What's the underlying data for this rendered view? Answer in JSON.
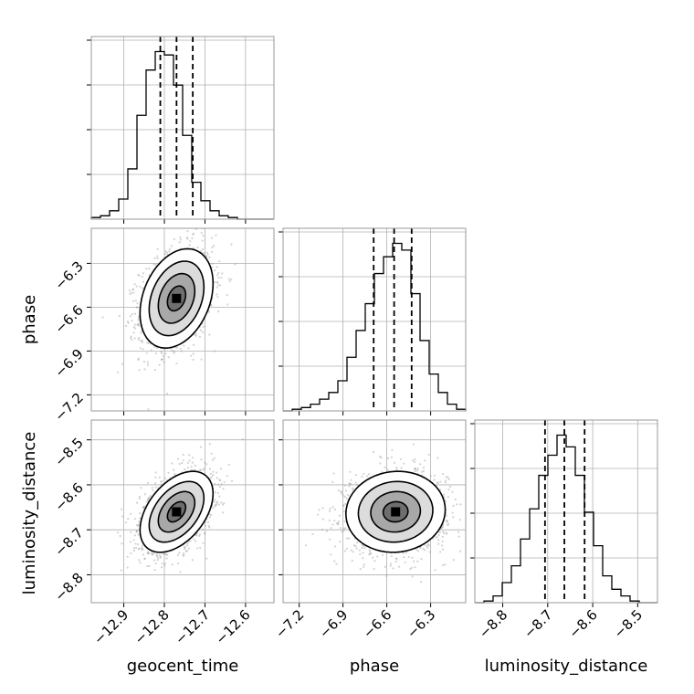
{
  "chart_data": {
    "type": "corner",
    "parameters": [
      "geocent_time",
      "phase",
      "luminosity_distance"
    ],
    "grid": true,
    "colors": {
      "line": "#000000",
      "grid": "#b0b0b0",
      "points": "#9e9e9e"
    },
    "ranges": {
      "geocent_time": [
        -12.98,
        -12.53
      ],
      "phase": [
        -7.31,
        -6.06
      ],
      "luminosity_distance": [
        -8.862,
        -8.456
      ]
    },
    "ticks": {
      "geocent_time": [
        -12.9,
        -12.8,
        -12.7,
        -12.6
      ],
      "phase": [
        -7.2,
        -6.9,
        -6.6,
        -6.3
      ],
      "luminosity_distance": [
        -8.8,
        -8.7,
        -8.6,
        -8.5
      ]
    },
    "tick_labels": {
      "geocent_time": [
        "−12.9",
        "−12.8",
        "−12.7",
        "−12.6"
      ],
      "phase": [
        "−7.2",
        "−6.9",
        "−6.6",
        "−6.3"
      ],
      "luminosity_distance": [
        "−8.8",
        "−8.7",
        "−8.6",
        "−8.5"
      ]
    },
    "quantiles": {
      "geocent_time": [
        -12.81,
        -12.77,
        -12.73
      ],
      "phase": [
        -6.69,
        -6.55,
        -6.43
      ],
      "luminosity_distance": [
        -8.706,
        -8.663,
        -8.618
      ]
    },
    "means": {
      "geocent_time": -12.77,
      "phase": -6.54,
      "luminosity_distance": -8.66
    },
    "stds": {
      "geocent_time": 0.045,
      "phase": 0.17,
      "luminosity_distance": 0.045
    },
    "correlations": [
      {
        "x": "geocent_time",
        "y": "phase",
        "rho": 0.3
      },
      {
        "x": "geocent_time",
        "y": "luminosity_distance",
        "rho": 0.45
      },
      {
        "x": "phase",
        "y": "luminosity_distance",
        "rho": 0.05
      }
    ],
    "histograms": {
      "geocent_time": {
        "edges": [
          -12.98,
          -12.9575,
          -12.935,
          -12.9125,
          -12.89,
          -12.8675,
          -12.845,
          -12.8225,
          -12.8,
          -12.7775,
          -12.755,
          -12.7325,
          -12.71,
          -12.6875,
          -12.665,
          -12.6425,
          -12.62,
          -12.5975,
          -12.575,
          -12.5525,
          -12.53
        ],
        "counts": [
          1,
          2,
          5,
          12,
          30,
          62,
          89,
          100,
          98,
          80,
          50,
          22,
          11,
          5,
          2,
          1,
          0,
          0,
          0,
          0
        ]
      },
      "phase": {
        "edges": [
          -7.31,
          -7.2475,
          -7.185,
          -7.1225,
          -7.06,
          -6.9975,
          -6.935,
          -6.8725,
          -6.81,
          -6.7475,
          -6.685,
          -6.6225,
          -6.56,
          -6.4975,
          -6.435,
          -6.3725,
          -6.31,
          -6.2475,
          -6.185,
          -6.1225,
          -6.06
        ],
        "counts": [
          0,
          1,
          2,
          4,
          7,
          11,
          18,
          32,
          48,
          64,
          82,
          92,
          100,
          96,
          70,
          42,
          22,
          11,
          4,
          1
        ]
      },
      "luminosity_distance": {
        "edges": [
          -8.862,
          -8.8417,
          -8.8214,
          -8.8011,
          -8.7808,
          -8.7605,
          -8.7402,
          -8.7199,
          -8.6996,
          -8.6793,
          -8.659,
          -8.6387,
          -8.6184,
          -8.5981,
          -8.5778,
          -8.5575,
          -8.5372,
          -8.5169,
          -8.4966,
          -8.4763,
          -8.456
        ],
        "counts": [
          0,
          1,
          4,
          12,
          22,
          38,
          56,
          76,
          88,
          100,
          93,
          76,
          54,
          34,
          16,
          8,
          4,
          1,
          0,
          0
        ]
      }
    },
    "contour_levels_sigma": [
      0.5,
      1.0,
      1.5,
      2.0
    ]
  }
}
